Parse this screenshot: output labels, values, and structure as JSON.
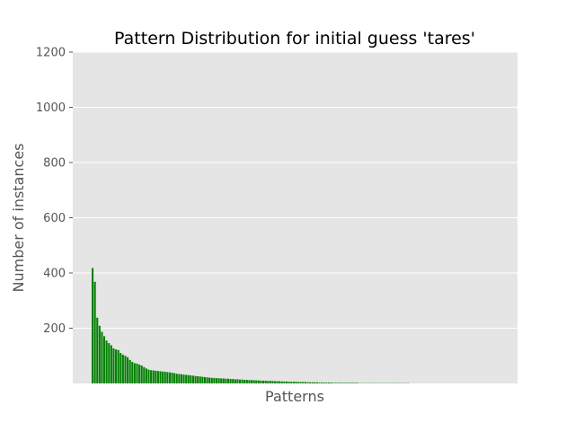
{
  "chart_data": {
    "type": "bar",
    "title": "Pattern Distribution for initial guess 'tares'",
    "xlabel": "Patterns",
    "ylabel": "Number of instances",
    "ylim": [
      0,
      1200
    ],
    "yticks": [
      200,
      400,
      600,
      800,
      1000,
      1200
    ],
    "ytick_labels": [
      "200",
      "400",
      "600",
      "800",
      "1000",
      "1200"
    ],
    "x_ticks_visible": false,
    "grid": true,
    "bar_color": "#008000",
    "plot_bg_color": "#e5e5e5",
    "values": [
      418,
      368,
      238,
      209,
      187,
      171,
      155,
      146,
      138,
      127,
      123,
      121,
      110,
      104,
      100,
      95,
      85,
      78,
      73,
      72,
      68,
      65,
      59,
      54,
      50,
      48,
      47,
      46,
      45,
      44,
      43,
      42,
      41,
      40,
      39,
      37,
      35,
      34,
      33,
      32,
      31,
      30,
      29,
      28,
      27,
      26,
      25,
      24,
      23,
      22,
      21,
      20,
      20,
      19,
      19,
      18,
      18,
      17,
      17,
      16,
      16,
      15,
      15,
      14,
      14,
      13,
      13,
      12,
      12,
      12,
      11,
      11,
      10,
      10,
      10,
      9,
      9,
      9,
      8,
      8,
      8,
      7,
      7,
      7,
      6,
      6,
      6,
      6,
      5,
      5,
      5,
      5,
      4,
      4,
      4,
      4,
      4,
      3,
      3,
      3,
      3,
      3,
      3,
      2,
      2,
      2,
      2,
      2,
      2,
      2,
      2,
      2,
      2,
      2,
      1,
      1,
      1,
      1,
      1,
      1,
      1,
      1,
      1,
      1,
      1,
      1,
      1,
      1,
      1,
      1,
      1,
      1,
      1,
      1,
      1,
      1
    ]
  }
}
